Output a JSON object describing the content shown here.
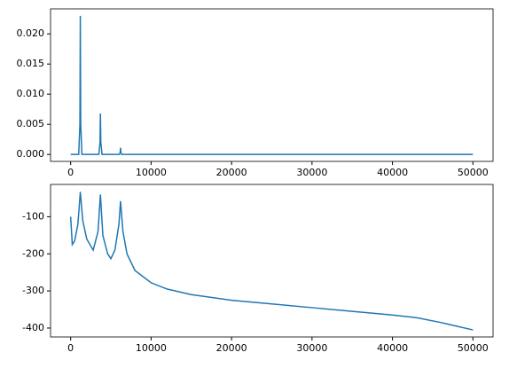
{
  "chart_data": [
    {
      "type": "line",
      "x": [
        0,
        1000,
        1150,
        1200,
        1250,
        1400,
        3500,
        3650,
        3700,
        3750,
        3900,
        6050,
        6150,
        6200,
        6250,
        6350,
        50000
      ],
      "series": [
        {
          "color": "#1f77b4",
          "values": [
            0,
            0,
            0.005,
            0.023,
            0.005,
            0,
            0,
            0.002,
            0.0068,
            0.002,
            0,
            0,
            0.0003,
            0.0011,
            0.0003,
            0,
            0
          ]
        }
      ],
      "xlim": [
        -2500,
        52500
      ],
      "xticks": [
        0,
        10000,
        20000,
        30000,
        40000,
        50000
      ],
      "ylim": [
        -0.00115,
        0.02415
      ],
      "yticks": [
        {
          "value": 0,
          "label": "0.000"
        },
        {
          "value": 0.005,
          "label": "0.005"
        },
        {
          "value": 0.01,
          "label": "0.010"
        },
        {
          "value": 0.015,
          "label": "0.015"
        },
        {
          "value": 0.02,
          "label": "0.020"
        }
      ]
    },
    {
      "type": "line",
      "x": [
        0,
        200,
        500,
        900,
        1200,
        1500,
        2000,
        2800,
        3400,
        3700,
        4000,
        4600,
        5000,
        5500,
        6000,
        6200,
        6500,
        7000,
        8000,
        10000,
        12000,
        15000,
        20000,
        25000,
        30000,
        35000,
        40000,
        43000,
        46000,
        48000,
        50000
      ],
      "series": [
        {
          "color": "#1f77b4",
          "values": [
            -100,
            -175,
            -165,
            -120,
            -33,
            -110,
            -160,
            -190,
            -140,
            -40,
            -150,
            -200,
            -213,
            -190,
            -120,
            -58,
            -140,
            -200,
            -245,
            -278,
            -295,
            -310,
            -325,
            -335,
            -345,
            -355,
            -365,
            -372,
            -385,
            -395,
            -405
          ]
        }
      ],
      "xlim": [
        -2500,
        52500
      ],
      "xticks": [
        0,
        10000,
        20000,
        30000,
        40000,
        50000
      ],
      "ylim": [
        -424,
        -13
      ],
      "yticks": [
        -400,
        -300,
        -200,
        -100
      ]
    }
  ]
}
